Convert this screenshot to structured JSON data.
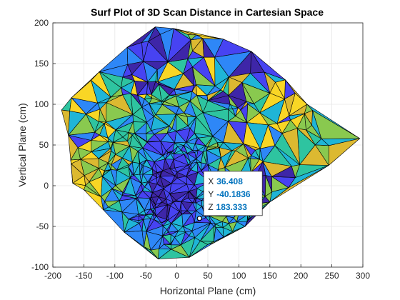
{
  "chart_data": {
    "type": "surf",
    "title": "Surf Plot of 3D Scan Distance in Cartesian Space",
    "xlabel": "Horizontal Plane (cm)",
    "ylabel": "Vertical Plane (cm)",
    "xlim": [
      -200,
      300
    ],
    "ylim": [
      -100,
      200
    ],
    "xticks": [
      "-200",
      "-150",
      "-100",
      "-50",
      "0",
      "50",
      "100",
      "150",
      "200",
      "250",
      "300"
    ],
    "yticks": [
      "-100",
      "-50",
      "0",
      "50",
      "100",
      "150",
      "200"
    ],
    "grid": true,
    "colormap": "parula",
    "colors": [
      "#3e26a8",
      "#4743f2",
      "#2e87f7",
      "#1fb5d7",
      "#2ec4a0",
      "#89c94f",
      "#dcb931",
      "#f9d625"
    ],
    "hull": [
      [
        -35,
        195
      ],
      [
        -5,
        193
      ],
      [
        75,
        180
      ],
      [
        120,
        165
      ],
      [
        175,
        130
      ],
      [
        210,
        100
      ],
      [
        295,
        58
      ],
      [
        245,
        25
      ],
      [
        150,
        -20
      ],
      [
        110,
        -50
      ],
      [
        60,
        -70
      ],
      [
        20,
        -88
      ],
      [
        -30,
        -90
      ],
      [
        -85,
        -57
      ],
      [
        -150,
        -5
      ],
      [
        -168,
        3
      ],
      [
        -175,
        62
      ],
      [
        -186,
        93
      ],
      [
        -170,
        108
      ],
      [
        -125,
        140
      ],
      [
        -80,
        170
      ]
    ],
    "datatip": {
      "x_label": "X",
      "x_value": "36.408",
      "y_label": "Y",
      "y_value": "-40.1836",
      "z_label": "Z",
      "z_value": "183.333",
      "point": [
        36.408,
        -40.1836
      ]
    }
  }
}
